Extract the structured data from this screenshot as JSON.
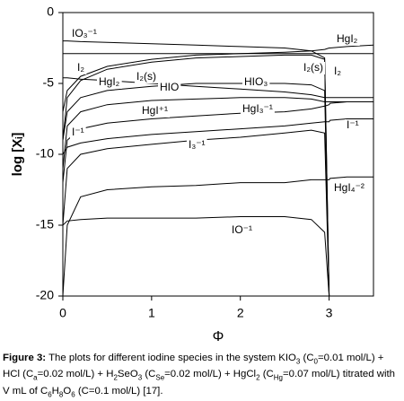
{
  "chart_data": {
    "type": "line",
    "color": "#000000",
    "xlabel": "Φ",
    "ylabel": "log [Xᵢ]",
    "xlim": [
      0,
      3.5
    ],
    "xticks": [
      0,
      1,
      2,
      3
    ],
    "ylim": [
      -20,
      0
    ],
    "yticks": [
      0,
      -5,
      -10,
      -15,
      -20
    ],
    "x": [
      0,
      0.05,
      0.2,
      0.5,
      1,
      1.5,
      2,
      2.5,
      2.8,
      2.95,
      3,
      3.01,
      3.2,
      3.5
    ],
    "series": [
      {
        "values": [
          -2.0,
          -2.0,
          -2.05,
          -2.1,
          -2.2,
          -2.3,
          -2.4,
          -2.5,
          -2.7,
          -3.2,
          -20,
          null,
          null,
          null
        ]
      },
      {
        "values": [
          -7,
          -5.5,
          -4.5,
          -3.8,
          -3.3,
          -3.0,
          -2.9,
          -2.8,
          -2.7,
          -2.6,
          -2.5,
          -2.5,
          -2.4,
          -2.3
        ]
      },
      {
        "values": [
          -9,
          -6,
          -4.8,
          -4,
          -3.5,
          -3.2,
          -3.1,
          -3.0,
          -3.0,
          -3.3,
          -20,
          null,
          null,
          null
        ]
      },
      {
        "values": [
          -2.9,
          -2.9,
          -2.9,
          -2.9,
          -2.9,
          -2.9,
          -2.9,
          -2.9,
          -2.9,
          -2.9,
          -2.9,
          -2.9,
          -2.9,
          -2.9
        ]
      },
      {
        "values": [
          -9,
          -7,
          -6,
          -5.5,
          -5.2,
          -5.0,
          -5.0,
          -5.0,
          -5.1,
          -5.5,
          -20,
          null,
          null,
          null
        ]
      },
      {
        "values": [
          -4.6,
          -4.6,
          -4.7,
          -4.8,
          -5.0,
          -5.2,
          -5.4,
          -5.6,
          -5.8,
          -6.0,
          -6.0,
          -6.0,
          -6.0,
          -6.0
        ]
      },
      {
        "values": [
          -11,
          -8,
          -7,
          -6.5,
          -6.2,
          -6.1,
          -6.0,
          -6.0,
          -6.1,
          -6.3,
          -6.3,
          -6.3,
          -6.3,
          -6.3
        ]
      },
      {
        "values": [
          -12,
          -9,
          -8.2,
          -7.8,
          -7.5,
          -7.3,
          -7.1,
          -7.0,
          -6.8,
          -6.6,
          -6.5,
          -6.4,
          -6.3,
          -6.3
        ]
      },
      {
        "values": [
          -10,
          -9.5,
          -9.2,
          -8.9,
          -8.6,
          -8.4,
          -8.2,
          -8.0,
          -7.8,
          -7.7,
          -7.7,
          -7.6,
          -7.5,
          -7.5
        ]
      },
      {
        "values": [
          -15,
          -11,
          -10,
          -9.6,
          -9.3,
          -9.0,
          -8.8,
          -8.5,
          -8.3,
          -8.5,
          -20,
          null,
          null,
          null
        ]
      },
      {
        "values": [
          -20,
          -15,
          -13,
          -12.5,
          -12.3,
          -12.2,
          -12.0,
          -12.0,
          -11.8,
          -11.8,
          -11.8,
          -11.7,
          -11.6,
          -11.6
        ]
      },
      {
        "values": [
          -15,
          -14.7,
          -14.6,
          -14.5,
          -14.5,
          -14.5,
          -14.4,
          -14.4,
          -14.6,
          -15.5,
          -20,
          null,
          null,
          null
        ]
      }
    ],
    "annotations": [
      "IO₃⁻¹",
      "HgI₂",
      "I₂",
      "HgI₂",
      "I₂(s)",
      "HIO",
      "HIO₃",
      "I₂(s)",
      "I₂",
      "HgI⁺¹",
      "HgI₃⁻¹",
      "I⁻¹",
      "I₃⁻¹",
      "I⁻¹",
      "HgI₄⁻²",
      "IO⁻¹"
    ]
  },
  "caption": {
    "label": "Figure 3:",
    "parts": [
      " The plots for different iodine species in the system KIO",
      "3",
      " (C",
      "0",
      "=0.01 mol/L) + HCl (C",
      "a",
      "=0.02 mol/L) + H",
      "2",
      "SeO",
      "3",
      " (C",
      "Se",
      "=0.02 mol/L) + HgCl",
      "2",
      " (C",
      "Hg",
      "=0.07 mol/L) titrated with V mL of C",
      "6",
      "H",
      "8",
      "O",
      "6",
      " (C=0.1 mol/L) [17]."
    ]
  }
}
